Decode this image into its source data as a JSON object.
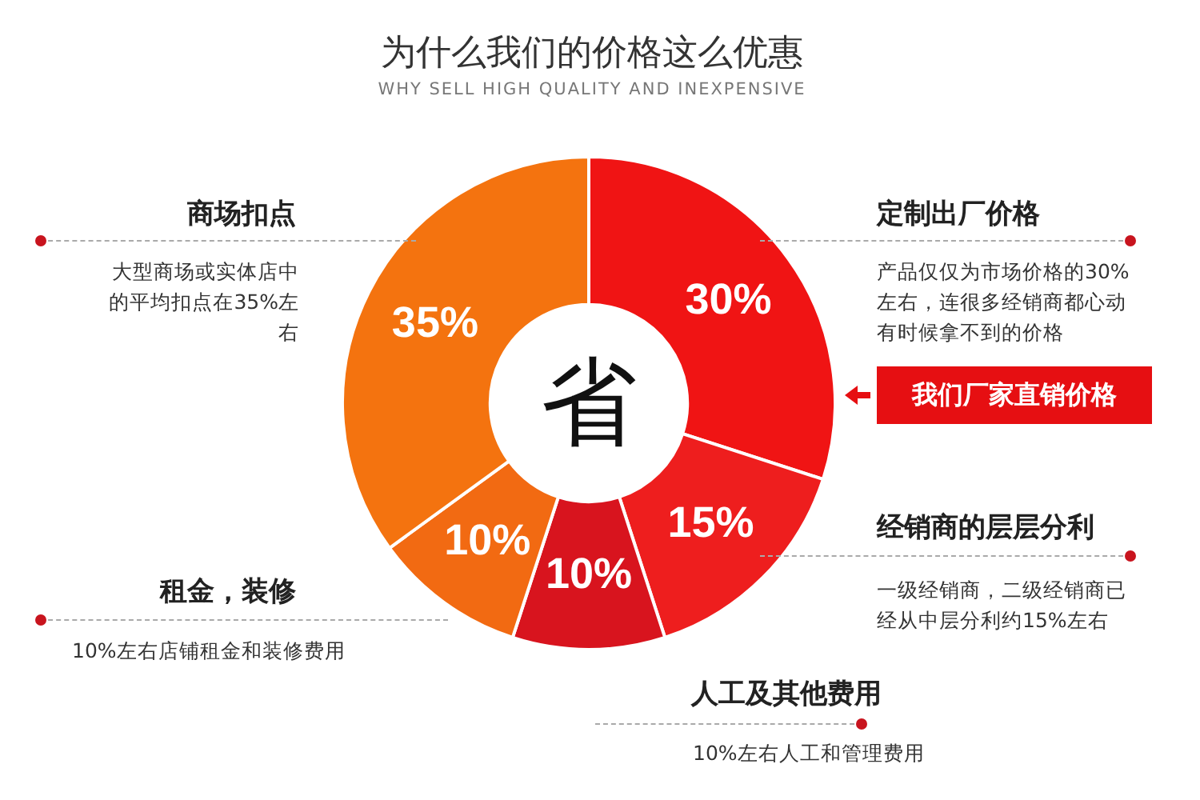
{
  "chart_data": {
    "type": "donut",
    "title": "为什么我们的价格这么优惠",
    "subtitle": "WHY SELL HIGH QUALITY AND INEXPENSIVE",
    "categories": [
      "定制出厂价格",
      "经销商的层层分利",
      "人工及其他费用",
      "租金，装修",
      "商场扣点"
    ],
    "values": [
      30,
      15,
      10,
      10,
      35
    ],
    "colors": [
      "#f01414",
      "#ee1e1e",
      "#d8141e",
      "#f26a12",
      "#f4730f"
    ],
    "value_labels": [
      "30%",
      "15%",
      "10%",
      "10%",
      "35%"
    ],
    "annotations": [
      "大型商场或实体店中的平均扣点在35%左右",
      "10%左右店铺租金和装修费用",
      "产品仅仅为市场价格的30%左右，连很多经销商都心动有时候拿不到的价格",
      "我们厂家直销价格",
      "一级经销商，二级经销商已经从中层分利约15%左右",
      "10%左右人工和管理费用",
      "省"
    ]
  }
}
